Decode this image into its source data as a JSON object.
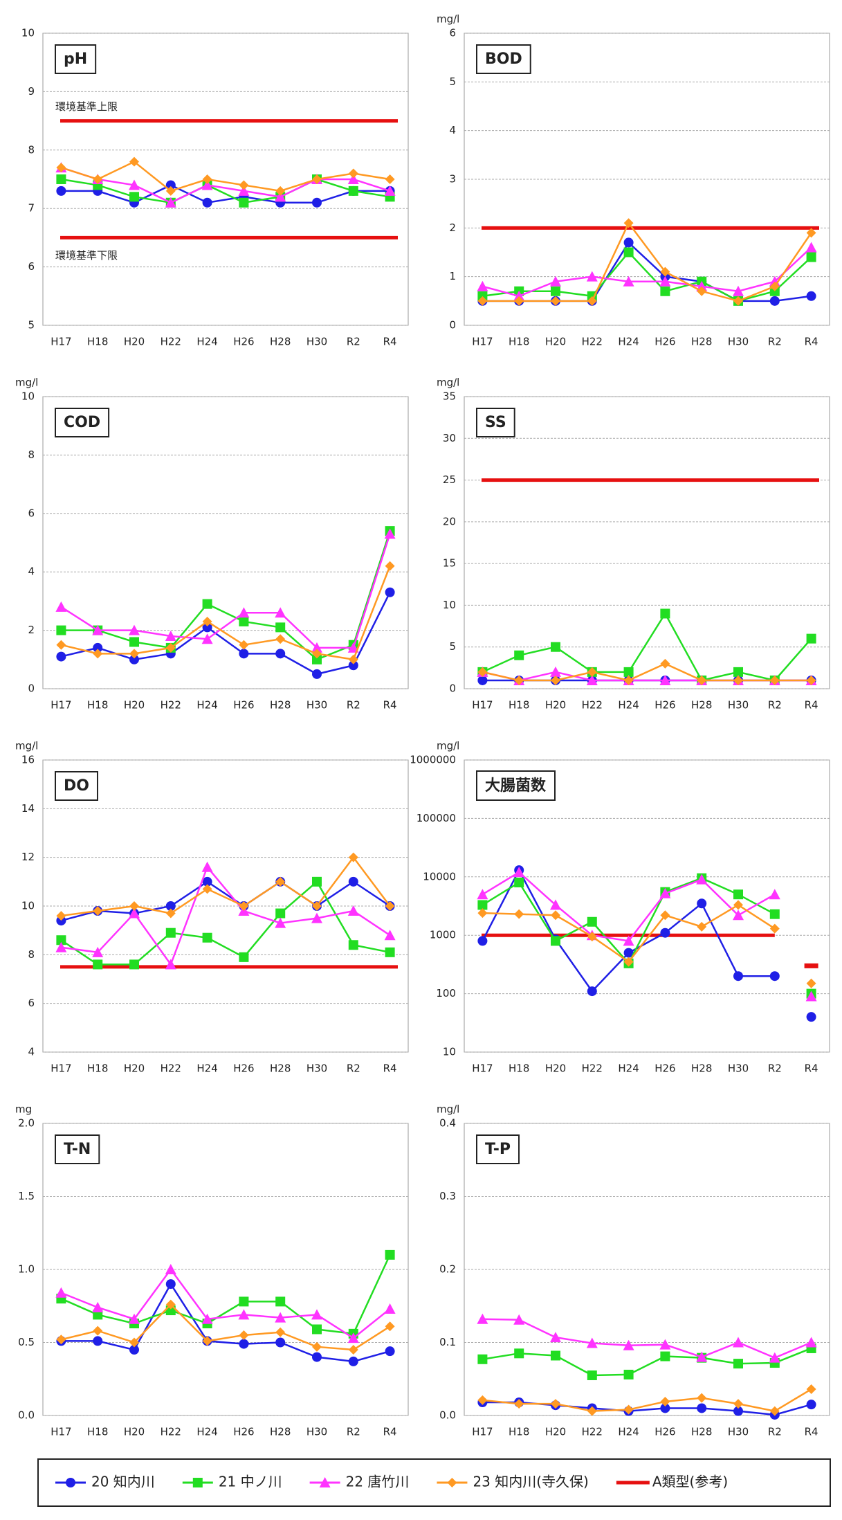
{
  "chart_data": [
    {
      "type": "line",
      "title": "pH",
      "categories": [
        "H17",
        "H18",
        "H20",
        "H22",
        "H24",
        "H26",
        "H28",
        "H30",
        "R2",
        "R4"
      ],
      "ylim": [
        5,
        10
      ],
      "yticks": [
        5,
        6,
        7,
        8,
        9,
        10
      ],
      "grid": true,
      "reference_lines": [
        {
          "label": "環境基準上限",
          "values": [
            8.5,
            8.5,
            8.5,
            8.5,
            8.5,
            8.5,
            8.5,
            8.5,
            8.5,
            8.5
          ]
        },
        {
          "label": "環境基準下限",
          "values": [
            6.5,
            6.5,
            6.5,
            6.5,
            6.5,
            6.5,
            6.5,
            6.5,
            6.5,
            6.5
          ]
        }
      ],
      "series": [
        {
          "values": [
            7.3,
            7.3,
            7.1,
            7.4,
            7.1,
            7.2,
            7.1,
            7.1,
            7.3,
            7.3
          ]
        },
        {
          "values": [
            7.5,
            7.4,
            7.2,
            7.1,
            7.4,
            7.1,
            7.2,
            7.5,
            7.3,
            7.2
          ]
        },
        {
          "values": [
            7.7,
            7.5,
            7.4,
            7.1,
            7.4,
            7.3,
            7.2,
            7.5,
            7.5,
            7.3
          ]
        },
        {
          "values": [
            7.7,
            7.5,
            7.8,
            7.3,
            7.5,
            7.4,
            7.3,
            7.5,
            7.6,
            7.5
          ]
        }
      ]
    },
    {
      "type": "line",
      "title": "BOD",
      "unit": "mg/l",
      "categories": [
        "H17",
        "H18",
        "H20",
        "H22",
        "H24",
        "H26",
        "H28",
        "H30",
        "R2",
        "R4"
      ],
      "ylim": [
        0,
        6
      ],
      "yticks": [
        0,
        1,
        2,
        3,
        4,
        5,
        6
      ],
      "grid": true,
      "reference_lines": [
        {
          "values": [
            2,
            2,
            2,
            2,
            2,
            2,
            2,
            2,
            2,
            2
          ]
        }
      ],
      "series": [
        {
          "values": [
            0.5,
            0.5,
            0.5,
            0.5,
            1.7,
            1.0,
            0.9,
            0.5,
            0.5,
            0.6
          ]
        },
        {
          "values": [
            0.6,
            0.7,
            0.7,
            0.6,
            1.5,
            0.7,
            0.9,
            0.5,
            0.7,
            1.4
          ]
        },
        {
          "values": [
            0.8,
            0.6,
            0.9,
            1.0,
            0.9,
            0.9,
            0.8,
            0.7,
            0.9,
            1.6
          ]
        },
        {
          "values": [
            0.5,
            0.5,
            0.5,
            0.5,
            2.1,
            1.1,
            0.7,
            0.5,
            0.8,
            1.9
          ]
        }
      ]
    },
    {
      "type": "line",
      "title": "COD",
      "unit": "mg/l",
      "categories": [
        "H17",
        "H18",
        "H20",
        "H22",
        "H24",
        "H26",
        "H28",
        "H30",
        "R2",
        "R4"
      ],
      "ylim": [
        0,
        10
      ],
      "yticks": [
        0,
        2,
        4,
        6,
        8,
        10
      ],
      "grid": true,
      "series": [
        {
          "values": [
            1.1,
            1.4,
            1.0,
            1.2,
            2.1,
            1.2,
            1.2,
            0.5,
            0.8,
            3.3
          ]
        },
        {
          "values": [
            2.0,
            2.0,
            1.6,
            1.4,
            2.9,
            2.3,
            2.1,
            1.0,
            1.5,
            5.4
          ]
        },
        {
          "values": [
            2.8,
            2.0,
            2.0,
            1.8,
            1.7,
            2.6,
            2.6,
            1.4,
            1.4,
            5.3
          ]
        },
        {
          "values": [
            1.5,
            1.2,
            1.2,
            1.4,
            2.3,
            1.5,
            1.7,
            1.2,
            1.0,
            4.2
          ]
        }
      ]
    },
    {
      "type": "line",
      "title": "SS",
      "unit": "mg/l",
      "categories": [
        "H17",
        "H18",
        "H20",
        "H22",
        "H24",
        "H26",
        "H28",
        "H30",
        "R2",
        "R4"
      ],
      "ylim": [
        0,
        35
      ],
      "yticks": [
        0,
        5,
        10,
        15,
        20,
        25,
        30,
        35
      ],
      "grid": true,
      "reference_lines": [
        {
          "values": [
            25,
            25,
            25,
            25,
            25,
            25,
            25,
            25,
            25,
            25
          ]
        }
      ],
      "series": [
        {
          "values": [
            1,
            1,
            1,
            1,
            1,
            1,
            1,
            1,
            1,
            1
          ]
        },
        {
          "values": [
            2,
            4,
            5,
            2,
            2,
            9,
            1,
            2,
            1,
            6
          ]
        },
        {
          "values": [
            2,
            1,
            2,
            1,
            1,
            1,
            1,
            1,
            1,
            1
          ]
        },
        {
          "values": [
            2,
            1,
            1,
            2,
            1,
            3,
            1,
            1,
            1,
            1
          ]
        }
      ]
    },
    {
      "type": "line",
      "title": "DO",
      "unit": "mg/l",
      "categories": [
        "H17",
        "H18",
        "H20",
        "H22",
        "H24",
        "H26",
        "H28",
        "H30",
        "R2",
        "R4"
      ],
      "ylim": [
        4,
        16
      ],
      "yticks": [
        4,
        6,
        8,
        10,
        12,
        14,
        16
      ],
      "grid": true,
      "reference_lines": [
        {
          "values": [
            7.5,
            7.5,
            7.5,
            7.5,
            7.5,
            7.5,
            7.5,
            7.5,
            7.5,
            7.5
          ]
        }
      ],
      "series": [
        {
          "values": [
            9.4,
            9.8,
            9.7,
            10.0,
            11.0,
            10.0,
            11.0,
            10.0,
            11.0,
            10.0
          ]
        },
        {
          "values": [
            8.6,
            7.6,
            7.6,
            8.9,
            8.7,
            7.9,
            9.7,
            11.0,
            8.4,
            8.1
          ]
        },
        {
          "values": [
            8.3,
            8.1,
            9.7,
            7.6,
            11.6,
            9.8,
            9.3,
            9.5,
            9.8,
            8.8
          ]
        },
        {
          "values": [
            9.6,
            9.8,
            10.0,
            9.7,
            10.7,
            10.0,
            11.0,
            10.0,
            12.0,
            10.0
          ]
        }
      ]
    },
    {
      "type": "line",
      "title": "大腸菌数",
      "unit": "mg/l",
      "log_scale": true,
      "categories": [
        "H17",
        "H18",
        "H20",
        "H22",
        "H24",
        "H26",
        "H28",
        "H30",
        "R2",
        "R4"
      ],
      "ylim": [
        10,
        1000000
      ],
      "yticks": [
        10,
        100,
        1000,
        10000,
        100000,
        1000000
      ],
      "grid": true,
      "reference_lines": [
        {
          "values": [
            1000,
            1000,
            1000,
            1000,
            1000,
            1000,
            1000,
            1000,
            1000,
            null
          ]
        }
      ],
      "reference_marker_values": [
        null,
        null,
        null,
        null,
        null,
        null,
        null,
        null,
        null,
        300
      ],
      "series": [
        {
          "values": [
            800,
            13000,
            850,
            110,
            500,
            1100,
            3500,
            200,
            200,
            null
          ],
          "marker_only_values": [
            null,
            null,
            null,
            null,
            null,
            null,
            null,
            null,
            null,
            40
          ]
        },
        {
          "values": [
            3300,
            8000,
            800,
            1700,
            330,
            5500,
            9500,
            5000,
            2300,
            null
          ],
          "marker_only_values": [
            null,
            null,
            null,
            null,
            null,
            null,
            null,
            null,
            null,
            100
          ]
        },
        {
          "values": [
            5000,
            12000,
            3300,
            1000,
            800,
            5200,
            9000,
            2200,
            5000,
            null
          ],
          "marker_only_values": [
            null,
            null,
            null,
            null,
            null,
            null,
            null,
            null,
            null,
            90
          ]
        },
        {
          "values": [
            2400,
            2300,
            2200,
            950,
            350,
            2200,
            1400,
            3300,
            1300,
            null
          ],
          "marker_only_values": [
            null,
            null,
            null,
            null,
            null,
            null,
            null,
            null,
            null,
            150
          ]
        }
      ]
    },
    {
      "type": "line",
      "title": "T-N",
      "unit": "mg",
      "categories": [
        "H17",
        "H18",
        "H20",
        "H22",
        "H24",
        "H26",
        "H28",
        "H30",
        "R2",
        "R4"
      ],
      "ylim": [
        0,
        2
      ],
      "yticks": [
        {
          "value": 0,
          "label": "0.0"
        },
        0.5,
        {
          "value": 1,
          "label": "1.0"
        },
        1.5,
        {
          "value": 2,
          "label": "2.0"
        }
      ],
      "grid": true,
      "series": [
        {
          "values": [
            0.51,
            0.51,
            0.45,
            0.9,
            0.51,
            0.49,
            0.5,
            0.4,
            0.37,
            0.44
          ]
        },
        {
          "values": [
            0.8,
            0.69,
            0.63,
            0.72,
            0.63,
            0.78,
            0.78,
            0.59,
            0.56,
            1.1
          ]
        },
        {
          "values": [
            0.84,
            0.74,
            0.66,
            1.0,
            0.66,
            0.69,
            0.67,
            0.69,
            0.53,
            0.73
          ]
        },
        {
          "values": [
            0.52,
            0.58,
            0.5,
            0.76,
            0.51,
            0.55,
            0.57,
            0.47,
            0.45,
            0.61
          ]
        }
      ]
    },
    {
      "type": "line",
      "title": "T-P",
      "unit": "mg/l",
      "categories": [
        "H17",
        "H18",
        "H20",
        "H22",
        "H24",
        "H26",
        "H28",
        "H30",
        "R2",
        "R4"
      ],
      "ylim": [
        0,
        0.4
      ],
      "yticks": [
        {
          "value": 0,
          "label": "0.0"
        },
        0.1,
        0.2,
        0.3,
        0.4
      ],
      "grid": true,
      "series": [
        {
          "values": [
            0.018,
            0.018,
            0.014,
            0.01,
            0.006,
            0.01,
            0.01,
            0.006,
            0.001,
            0.015
          ]
        },
        {
          "values": [
            0.077,
            0.085,
            0.082,
            0.055,
            0.056,
            0.081,
            0.079,
            0.071,
            0.072,
            0.092
          ]
        },
        {
          "values": [
            0.132,
            0.131,
            0.107,
            0.099,
            0.096,
            0.097,
            0.08,
            0.1,
            0.079,
            0.1
          ]
        },
        {
          "values": [
            0.021,
            0.016,
            0.016,
            0.006,
            0.008,
            0.019,
            0.024,
            0.016,
            0.006,
            0.036
          ]
        }
      ]
    }
  ],
  "legend": {
    "series": [
      {
        "name": "20 知内川",
        "color": "#1f1fe6",
        "marker": "circle"
      },
      {
        "name": "21 中ノ川",
        "color": "#22dd22",
        "marker": "square"
      },
      {
        "name": "22 唐竹川",
        "color": "#ff33ff",
        "marker": "triangle"
      },
      {
        "name": "23 知内川(寺久保)",
        "color": "#ff9922",
        "marker": "diamond"
      }
    ],
    "reference": {
      "name": "A類型(参考)",
      "color": "#e61010"
    }
  }
}
